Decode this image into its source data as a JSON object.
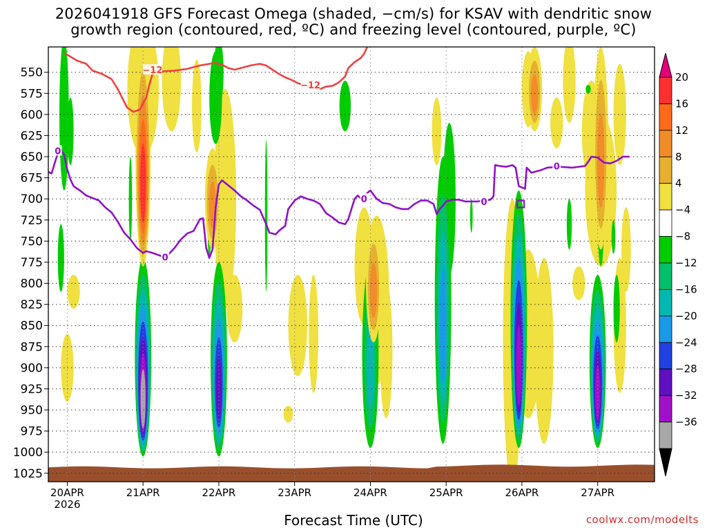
{
  "chart_data": {
    "type": "contour-timeheight",
    "title_line1": "2026041918 GFS Forecast Omega (shaded, −cm/s) for KSAV with dendritic snow",
    "title_line2": "growth region (contoured, red, ºC) and freezing level (contoured, purple, ºC)",
    "xlabel": "Forecast Time (UTC)",
    "credit": "coolwx.com/modelts",
    "y_axis": {
      "unit": "hPa",
      "range": [
        1035,
        520
      ],
      "ticks": [
        550,
        575,
        600,
        625,
        650,
        675,
        700,
        725,
        750,
        775,
        800,
        825,
        850,
        875,
        900,
        925,
        950,
        975,
        1000,
        1025
      ]
    },
    "x_axis": {
      "unit": "forecast hour from 2026041918",
      "range": [
        0,
        192
      ],
      "ticks": [
        {
          "hour": 6,
          "label": "20APR",
          "sublabel": "2026"
        },
        {
          "hour": 30,
          "label": "21APR"
        },
        {
          "hour": 54,
          "label": "22APR"
        },
        {
          "hour": 78,
          "label": "23APR"
        },
        {
          "hour": 102,
          "label": "24APR"
        },
        {
          "hour": 126,
          "label": "25APR"
        },
        {
          "hour": 150,
          "label": "26APR"
        },
        {
          "hour": 174,
          "label": "27APR"
        }
      ]
    },
    "colorbar": {
      "levels": [
        "20",
        "16",
        "12",
        "8",
        "4",
        "−4",
        "−8",
        "−12",
        "−16",
        "−20",
        "−24",
        "−28",
        "−32",
        "−36"
      ],
      "colors_top_to_bottom": [
        "#e6007a",
        "#ff3030",
        "#ff6b1a",
        "#f28c28",
        "#e6b030",
        "#f0e040",
        "#ffffff",
        "#00cc00",
        "#00c06a",
        "#00b8b0",
        "#1a9ae6",
        "#2040e0",
        "#6010c0",
        "#a010c8",
        "#a8a8a8",
        "#000000"
      ]
    },
    "series": [
      {
        "name": "dendritic growth region (−12 ºC)",
        "color": "#f04040",
        "label": "−12",
        "points": [
          [
            5,
            527
          ],
          [
            9,
            536
          ],
          [
            12,
            540
          ],
          [
            14,
            548
          ],
          [
            17,
            552
          ],
          [
            20,
            558
          ],
          [
            22,
            570
          ],
          [
            24,
            585
          ],
          [
            25,
            592
          ],
          [
            27,
            597
          ],
          [
            29,
            594
          ],
          [
            31,
            580
          ],
          [
            32,
            565
          ],
          [
            33,
            552
          ],
          [
            34,
            548
          ],
          [
            36,
            549
          ],
          [
            40,
            548
          ],
          [
            44,
            546
          ],
          [
            48,
            542
          ],
          [
            51,
            540
          ],
          [
            53,
            539
          ],
          [
            55,
            541
          ],
          [
            57,
            545
          ],
          [
            59,
            547
          ],
          [
            61,
            545
          ],
          [
            64,
            542
          ],
          [
            67,
            540
          ],
          [
            69,
            542
          ],
          [
            71,
            547
          ],
          [
            73,
            552
          ],
          [
            75,
            556
          ],
          [
            77,
            559
          ],
          [
            79,
            563
          ],
          [
            81,
            565
          ],
          [
            84,
            568
          ],
          [
            86,
            570
          ],
          [
            88,
            567
          ],
          [
            90,
            566
          ],
          [
            92,
            562
          ],
          [
            94,
            555
          ],
          [
            95,
            545
          ],
          [
            97,
            538
          ],
          [
            99,
            533
          ],
          [
            100,
            528
          ],
          [
            101,
            520
          ]
        ]
      },
      {
        "name": "freezing level (0 ºC)",
        "color": "#9010c8",
        "label": "0",
        "points": [
          [
            0,
            668
          ],
          [
            1,
            670
          ],
          [
            2,
            658
          ],
          [
            3,
            646
          ],
          [
            4,
            642
          ],
          [
            5,
            648
          ],
          [
            6,
            665
          ],
          [
            7,
            677
          ],
          [
            8,
            685
          ],
          [
            10,
            690
          ],
          [
            12,
            696
          ],
          [
            14,
            699
          ],
          [
            16,
            702
          ],
          [
            18,
            710
          ],
          [
            20,
            716
          ],
          [
            22,
            727
          ],
          [
            24,
            740
          ],
          [
            26,
            748
          ],
          [
            28,
            758
          ],
          [
            30,
            764
          ],
          [
            31,
            762
          ],
          [
            33,
            764
          ],
          [
            36,
            768
          ],
          [
            38,
            766
          ],
          [
            40,
            758
          ],
          [
            42,
            748
          ],
          [
            44,
            741
          ],
          [
            46,
            738
          ],
          [
            48,
            724
          ],
          [
            49,
            723
          ],
          [
            50,
            758
          ],
          [
            51,
            770
          ],
          [
            52,
            760
          ],
          [
            53,
            710
          ],
          [
            54,
            683
          ],
          [
            55,
            678
          ],
          [
            57,
            684
          ],
          [
            59,
            690
          ],
          [
            61,
            697
          ],
          [
            63,
            702
          ],
          [
            65,
            708
          ],
          [
            67,
            713
          ],
          [
            69,
            730
          ],
          [
            70,
            740
          ],
          [
            72,
            742
          ],
          [
            73,
            738
          ],
          [
            75,
            732
          ],
          [
            76,
            712
          ],
          [
            78,
            702
          ],
          [
            80,
            697
          ],
          [
            82,
            700
          ],
          [
            84,
            702
          ],
          [
            86,
            706
          ],
          [
            88,
            717
          ],
          [
            90,
            722
          ],
          [
            92,
            728
          ],
          [
            94,
            730
          ],
          [
            95,
            724
          ],
          [
            96,
            712
          ],
          [
            97,
            700
          ],
          [
            98,
            696
          ],
          [
            100,
            703
          ],
          [
            101,
            693
          ],
          [
            102,
            690
          ],
          [
            104,
            700
          ],
          [
            106,
            705
          ],
          [
            108,
            706
          ],
          [
            110,
            710
          ],
          [
            112,
            712
          ],
          [
            114,
            712
          ],
          [
            116,
            706
          ],
          [
            118,
            702
          ],
          [
            120,
            702
          ],
          [
            122,
            706
          ],
          [
            123,
            718
          ],
          [
            124,
            712
          ],
          [
            125,
            708
          ],
          [
            126,
            703
          ],
          [
            128,
            701
          ],
          [
            130,
            701
          ],
          [
            132,
            703
          ],
          [
            134,
            703
          ],
          [
            136,
            703
          ],
          [
            138,
            702
          ],
          [
            140,
            701
          ],
          [
            141,
            697
          ],
          [
            141.5,
            660
          ],
          [
            143,
            661
          ],
          [
            145,
            662
          ],
          [
            147,
            660
          ],
          [
            148,
            663
          ],
          [
            149,
            685
          ],
          [
            151,
            688
          ],
          [
            151.5,
            663
          ],
          [
            153,
            669
          ],
          [
            156,
            666
          ],
          [
            158,
            663
          ],
          [
            162,
            662
          ],
          [
            166,
            663
          ],
          [
            170,
            661
          ],
          [
            171,
            656
          ],
          [
            172,
            650
          ],
          [
            174,
            651
          ],
          [
            176,
            657
          ],
          [
            178,
            658
          ],
          [
            180,
            655
          ],
          [
            182,
            650
          ],
          [
            184,
            650
          ]
        ]
      }
    ],
    "inline_labels": [
      {
        "text": "−12",
        "hour": 33,
        "hpa": 547,
        "color": "#f04040"
      },
      {
        "text": "−12",
        "hour": 83,
        "hpa": 565,
        "color": "#f04040"
      },
      {
        "text": "0",
        "hour": 3,
        "hpa": 643,
        "color": "#9010c8"
      },
      {
        "text": "0",
        "hour": 37,
        "hpa": 769,
        "color": "#9010c8"
      },
      {
        "text": "0",
        "hour": 100,
        "hpa": 700,
        "color": "#9010c8"
      },
      {
        "text": "0",
        "hour": 138,
        "hpa": 703,
        "color": "#9010c8"
      },
      {
        "text": "0",
        "hour": 161,
        "hpa": 661,
        "color": "#9010c8"
      }
    ],
    "omega_features": [
      {
        "kind": "ascent",
        "hour": 30,
        "hpa_top": 770,
        "hpa_bottom": 1005,
        "max": -32
      },
      {
        "kind": "ascent",
        "hour": 54,
        "hpa_top": 775,
        "hpa_bottom": 1005,
        "max": -24
      },
      {
        "kind": "ascent",
        "hour": 102,
        "hpa_top": 775,
        "hpa_bottom": 995,
        "max": -12
      },
      {
        "kind": "ascent",
        "hour": 125,
        "hpa_top": 650,
        "hpa_bottom": 990,
        "max": -16
      },
      {
        "kind": "ascent",
        "hour": 149,
        "hpa_top": 690,
        "hpa_bottom": 995,
        "max": -28
      },
      {
        "kind": "ascent",
        "hour": 174,
        "hpa_top": 790,
        "hpa_bottom": 995,
        "max": -28
      },
      {
        "kind": "descent",
        "hour": 30,
        "hpa_top": 520,
        "hpa_bottom": 780,
        "max": 20
      },
      {
        "kind": "descent",
        "hour": 52,
        "hpa_top": 640,
        "hpa_bottom": 760,
        "max": 12
      },
      {
        "kind": "descent",
        "hour": 103,
        "hpa_top": 730,
        "hpa_bottom": 870,
        "max": 12
      },
      {
        "kind": "descent",
        "hour": 154,
        "hpa_top": 520,
        "hpa_bottom": 620,
        "max": 12
      },
      {
        "kind": "descent",
        "hour": 175,
        "hpa_top": 520,
        "hpa_bottom": 760,
        "max": 12
      }
    ],
    "surface_fill_color": "#9a4f2c"
  }
}
